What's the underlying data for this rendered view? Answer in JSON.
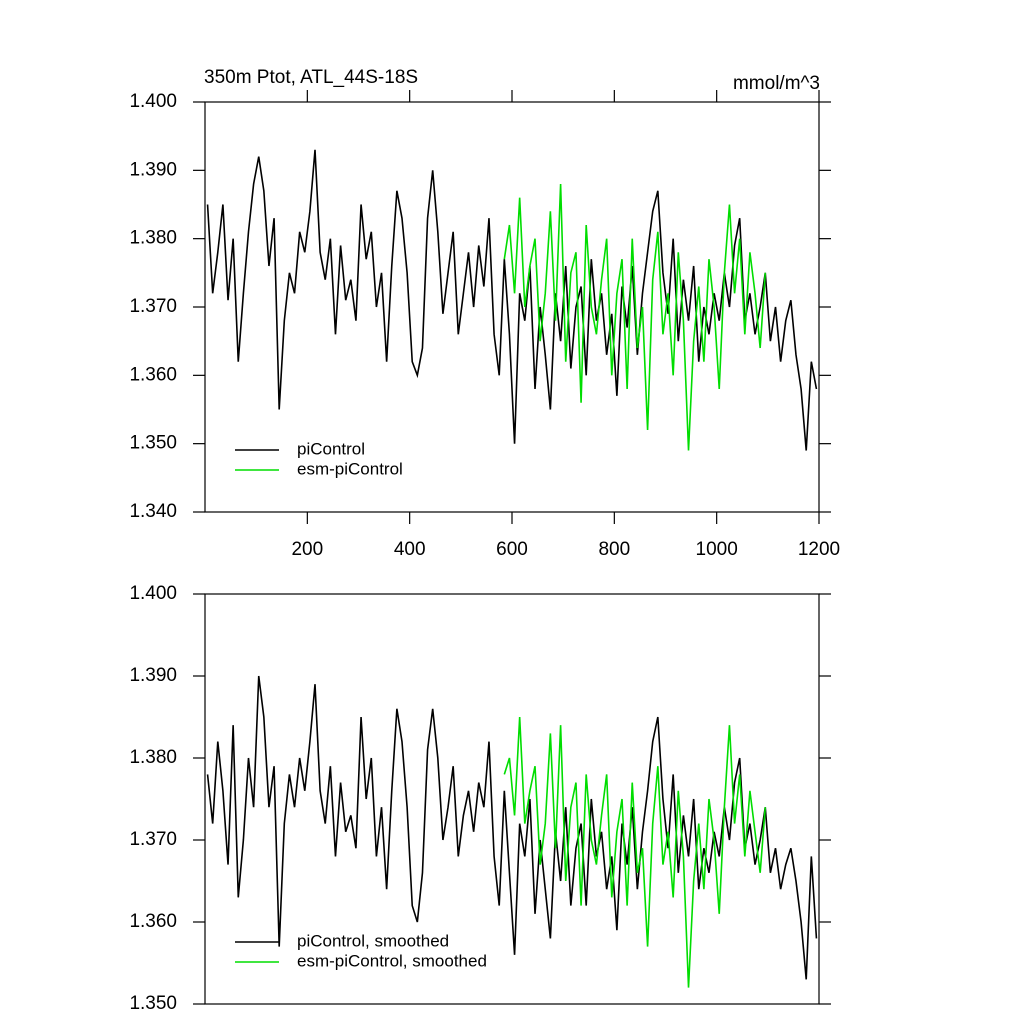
{
  "chart_data": [
    {
      "type": "line",
      "title": "350m Ptot, ATL_44S-18S",
      "units": "mmol/m^3",
      "xlim": [
        0,
        1200
      ],
      "xticks": [
        200,
        400,
        600,
        800,
        1000,
        1200
      ],
      "ylim": [
        1.34,
        1.4
      ],
      "yticks": [
        {
          "value": 1.34,
          "label": "1.340"
        },
        {
          "value": 1.35,
          "label": "1.350"
        },
        {
          "value": 1.36,
          "label": "1.360"
        },
        {
          "value": 1.37,
          "label": "1.370"
        },
        {
          "value": 1.38,
          "label": "1.380"
        },
        {
          "value": 1.39,
          "label": "1.390"
        },
        {
          "value": 1.4,
          "label": "1.400"
        }
      ],
      "legend": "lower left",
      "series": [
        {
          "name": "piControl",
          "color": "#000000",
          "x": [
            5,
            15,
            25,
            35,
            45,
            55,
            65,
            75,
            85,
            95,
            105,
            115,
            125,
            135,
            145,
            155,
            165,
            175,
            185,
            195,
            205,
            215,
            225,
            235,
            245,
            255,
            265,
            275,
            285,
            295,
            305,
            315,
            325,
            335,
            345,
            355,
            365,
            375,
            385,
            395,
            405,
            415,
            425,
            435,
            445,
            455,
            465,
            475,
            485,
            495,
            505,
            515,
            525,
            535,
            545,
            555,
            565,
            575,
            585,
            595,
            605,
            615,
            625,
            635,
            645,
            655,
            665,
            675,
            685,
            695,
            705,
            715,
            725,
            735,
            745,
            755,
            765,
            775,
            785,
            795,
            805,
            815,
            825,
            835,
            845,
            855,
            865,
            875,
            885,
            895,
            905,
            915,
            925,
            935,
            945,
            955,
            965,
            975,
            985,
            995,
            1005,
            1015,
            1025,
            1035,
            1045,
            1055,
            1065,
            1075,
            1085,
            1095,
            1105,
            1115,
            1125,
            1135,
            1145,
            1155,
            1165,
            1175,
            1185,
            1195
          ],
          "values": [
            1.385,
            1.372,
            1.378,
            1.385,
            1.371,
            1.38,
            1.362,
            1.372,
            1.381,
            1.388,
            1.392,
            1.387,
            1.376,
            1.383,
            1.355,
            1.368,
            1.375,
            1.372,
            1.381,
            1.378,
            1.384,
            1.393,
            1.378,
            1.374,
            1.38,
            1.366,
            1.379,
            1.371,
            1.374,
            1.368,
            1.385,
            1.377,
            1.381,
            1.37,
            1.375,
            1.362,
            1.376,
            1.387,
            1.383,
            1.375,
            1.362,
            1.36,
            1.364,
            1.383,
            1.39,
            1.381,
            1.369,
            1.375,
            1.381,
            1.366,
            1.372,
            1.378,
            1.37,
            1.379,
            1.373,
            1.383,
            1.366,
            1.36,
            1.377,
            1.366,
            1.35,
            1.372,
            1.368,
            1.376,
            1.358,
            1.37,
            1.363,
            1.355,
            1.372,
            1.365,
            1.376,
            1.361,
            1.37,
            1.373,
            1.36,
            1.377,
            1.368,
            1.372,
            1.363,
            1.369,
            1.357,
            1.373,
            1.367,
            1.376,
            1.363,
            1.372,
            1.378,
            1.384,
            1.387,
            1.375,
            1.369,
            1.38,
            1.365,
            1.374,
            1.368,
            1.376,
            1.362,
            1.37,
            1.366,
            1.372,
            1.368,
            1.375,
            1.37,
            1.379,
            1.383,
            1.368,
            1.372,
            1.366,
            1.37,
            1.375,
            1.365,
            1.37,
            1.362,
            1.368,
            1.371,
            1.363,
            1.358,
            1.349,
            1.362,
            1.358
          ]
        },
        {
          "name": "esm-piControl",
          "color": "#00dd00",
          "x": [
            585,
            595,
            605,
            615,
            625,
            635,
            645,
            655,
            665,
            675,
            685,
            695,
            705,
            715,
            725,
            735,
            745,
            755,
            765,
            775,
            785,
            795,
            805,
            815,
            825,
            835,
            845,
            855,
            865,
            875,
            885,
            895,
            905,
            915,
            925,
            935,
            945,
            955,
            965,
            975,
            985,
            995,
            1005,
            1015,
            1025,
            1035,
            1045,
            1055,
            1065,
            1075,
            1085,
            1095
          ],
          "values": [
            1.377,
            1.382,
            1.372,
            1.386,
            1.37,
            1.376,
            1.38,
            1.365,
            1.372,
            1.384,
            1.368,
            1.388,
            1.362,
            1.375,
            1.378,
            1.356,
            1.382,
            1.37,
            1.366,
            1.374,
            1.38,
            1.36,
            1.372,
            1.377,
            1.358,
            1.38,
            1.364,
            1.37,
            1.352,
            1.374,
            1.381,
            1.366,
            1.372,
            1.36,
            1.378,
            1.368,
            1.349,
            1.365,
            1.373,
            1.362,
            1.377,
            1.37,
            1.358,
            1.375,
            1.385,
            1.372,
            1.38,
            1.366,
            1.378,
            1.372,
            1.364,
            1.375
          ]
        }
      ]
    },
    {
      "type": "line",
      "xlim": [
        0,
        1200
      ],
      "ylim": [
        1.35,
        1.4
      ],
      "yticks": [
        {
          "value": 1.35,
          "label": "1.350"
        },
        {
          "value": 1.36,
          "label": "1.360"
        },
        {
          "value": 1.37,
          "label": "1.370"
        },
        {
          "value": 1.38,
          "label": "1.380"
        },
        {
          "value": 1.39,
          "label": "1.390"
        },
        {
          "value": 1.4,
          "label": "1.400"
        }
      ],
      "legend": "lower left",
      "series": [
        {
          "name": "piControl, smoothed",
          "color": "#000000",
          "x": [
            5,
            15,
            25,
            35,
            45,
            55,
            65,
            75,
            85,
            95,
            105,
            115,
            125,
            135,
            145,
            155,
            165,
            175,
            185,
            195,
            205,
            215,
            225,
            235,
            245,
            255,
            265,
            275,
            285,
            295,
            305,
            315,
            325,
            335,
            345,
            355,
            365,
            375,
            385,
            395,
            405,
            415,
            425,
            435,
            445,
            455,
            465,
            475,
            485,
            495,
            505,
            515,
            525,
            535,
            545,
            555,
            565,
            575,
            585,
            595,
            605,
            615,
            625,
            635,
            645,
            655,
            665,
            675,
            685,
            695,
            705,
            715,
            725,
            735,
            745,
            755,
            765,
            775,
            785,
            795,
            805,
            815,
            825,
            835,
            845,
            855,
            865,
            875,
            885,
            895,
            905,
            915,
            925,
            935,
            945,
            955,
            965,
            975,
            985,
            995,
            1005,
            1015,
            1025,
            1035,
            1045,
            1055,
            1065,
            1075,
            1085,
            1095,
            1105,
            1115,
            1125,
            1135,
            1145,
            1155,
            1165,
            1175,
            1185,
            1195
          ],
          "values": [
            1.378,
            1.372,
            1.382,
            1.376,
            1.367,
            1.384,
            1.363,
            1.37,
            1.38,
            1.374,
            1.39,
            1.385,
            1.374,
            1.379,
            1.357,
            1.372,
            1.378,
            1.374,
            1.38,
            1.376,
            1.382,
            1.389,
            1.376,
            1.372,
            1.379,
            1.368,
            1.377,
            1.371,
            1.373,
            1.369,
            1.385,
            1.375,
            1.38,
            1.368,
            1.374,
            1.364,
            1.376,
            1.386,
            1.382,
            1.374,
            1.362,
            1.36,
            1.366,
            1.381,
            1.386,
            1.38,
            1.37,
            1.374,
            1.379,
            1.368,
            1.373,
            1.376,
            1.371,
            1.377,
            1.374,
            1.382,
            1.368,
            1.362,
            1.376,
            1.366,
            1.356,
            1.372,
            1.368,
            1.375,
            1.361,
            1.37,
            1.364,
            1.358,
            1.371,
            1.365,
            1.374,
            1.362,
            1.369,
            1.372,
            1.362,
            1.375,
            1.368,
            1.371,
            1.364,
            1.368,
            1.359,
            1.372,
            1.367,
            1.374,
            1.364,
            1.371,
            1.376,
            1.382,
            1.385,
            1.375,
            1.369,
            1.378,
            1.366,
            1.373,
            1.368,
            1.375,
            1.364,
            1.369,
            1.366,
            1.371,
            1.368,
            1.374,
            1.37,
            1.377,
            1.38,
            1.369,
            1.372,
            1.367,
            1.37,
            1.374,
            1.366,
            1.369,
            1.364,
            1.367,
            1.369,
            1.365,
            1.36,
            1.353,
            1.368,
            1.358
          ]
        },
        {
          "name": "esm-piControl, smoothed",
          "color": "#00dd00",
          "x": [
            585,
            595,
            605,
            615,
            625,
            635,
            645,
            655,
            665,
            675,
            685,
            695,
            705,
            715,
            725,
            735,
            745,
            755,
            765,
            775,
            785,
            795,
            805,
            815,
            825,
            835,
            845,
            855,
            865,
            875,
            885,
            895,
            905,
            915,
            925,
            935,
            945,
            955,
            965,
            975,
            985,
            995,
            1005,
            1015,
            1025,
            1035,
            1045,
            1055,
            1065,
            1075,
            1085,
            1095
          ],
          "values": [
            1.378,
            1.38,
            1.373,
            1.385,
            1.372,
            1.376,
            1.379,
            1.367,
            1.372,
            1.383,
            1.369,
            1.384,
            1.365,
            1.374,
            1.377,
            1.362,
            1.378,
            1.37,
            1.367,
            1.373,
            1.378,
            1.363,
            1.371,
            1.375,
            1.362,
            1.377,
            1.366,
            1.369,
            1.357,
            1.372,
            1.379,
            1.367,
            1.371,
            1.363,
            1.376,
            1.368,
            1.352,
            1.365,
            1.372,
            1.364,
            1.375,
            1.37,
            1.361,
            1.374,
            1.384,
            1.372,
            1.378,
            1.368,
            1.376,
            1.371,
            1.366,
            1.374
          ]
        }
      ]
    }
  ]
}
